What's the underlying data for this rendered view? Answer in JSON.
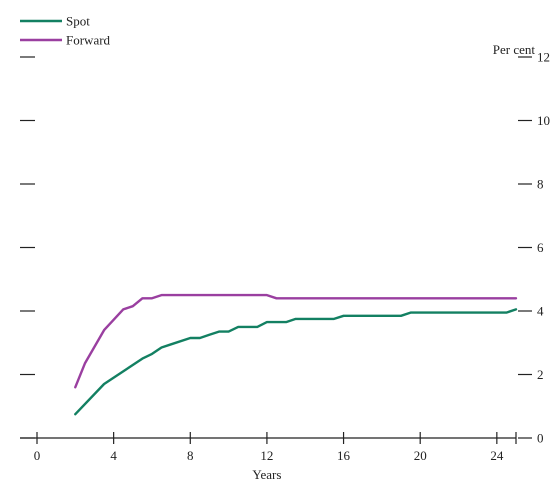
{
  "chart_data": {
    "type": "line",
    "title": "",
    "xlabel": "Years",
    "ylabel": "Per cent",
    "xlim": [
      0,
      25
    ],
    "ylim": [
      0,
      12
    ],
    "xticks": [
      "0",
      "4",
      "8",
      "12",
      "16",
      "20",
      "24"
    ],
    "yticks": [
      "0",
      "2",
      "4",
      "6",
      "8",
      "10",
      "12"
    ],
    "legend": "top-left",
    "series": [
      {
        "name": "Spot",
        "color": "#138062",
        "x": [
          2,
          3.5,
          5.5,
          6,
          6.5,
          7,
          8,
          8.5,
          9,
          9.5,
          10,
          10.5,
          11.5,
          12,
          13,
          13.5,
          15.5,
          16,
          19,
          19.5,
          24.5,
          25
        ],
        "y": [
          0.75,
          1.7,
          2.5,
          2.65,
          2.85,
          2.95,
          3.15,
          3.15,
          3.25,
          3.35,
          3.35,
          3.5,
          3.5,
          3.65,
          3.65,
          3.75,
          3.75,
          3.85,
          3.85,
          3.95,
          3.95,
          4.05
        ]
      },
      {
        "name": "Forward",
        "color": "#9a3fa0",
        "x": [
          2,
          2.5,
          3.5,
          4.5,
          5,
          5.5,
          6,
          6.5,
          12,
          12.5,
          25
        ],
        "y": [
          1.6,
          2.35,
          3.4,
          4.05,
          4.15,
          4.4,
          4.4,
          4.5,
          4.5,
          4.4,
          4.4
        ]
      }
    ]
  }
}
